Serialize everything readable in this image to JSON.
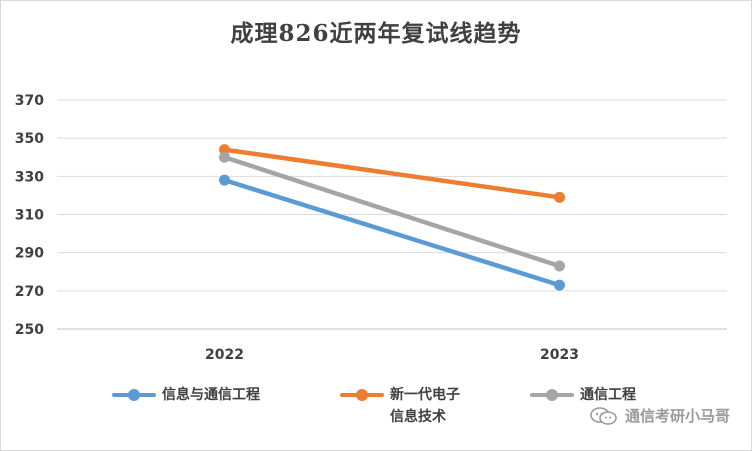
{
  "chart_data": {
    "type": "line",
    "title": "成理826近两年复试线趋势",
    "categories": [
      "2022",
      "2023"
    ],
    "ylim": [
      250,
      370
    ],
    "yticks": [
      250,
      270,
      290,
      310,
      330,
      350,
      370
    ],
    "grid": true,
    "legend_position": "bottom",
    "series": [
      {
        "name": "信息与通信工程",
        "color": "#5b9bd5",
        "values": [
          328,
          273
        ]
      },
      {
        "name": "新一代电子信息技术",
        "color": "#ed7d31",
        "values": [
          344,
          319
        ]
      },
      {
        "name": "通信工程",
        "color": "#a5a5a5",
        "values": [
          340,
          283
        ]
      }
    ]
  },
  "watermark": {
    "text": "通信考研小马哥",
    "icon": "wechat-icon"
  }
}
